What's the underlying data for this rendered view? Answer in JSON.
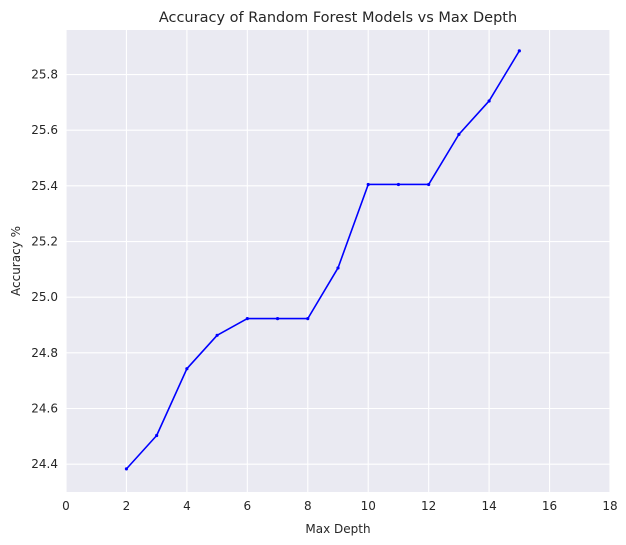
{
  "chart_data": {
    "type": "line",
    "title": "Accuracy of Random Forest Models vs Max Depth",
    "xlabel": "Max Depth",
    "ylabel": "Accuracy %",
    "xlim": [
      0,
      18
    ],
    "ylim": [
      24.3,
      25.96
    ],
    "xticks": [
      0,
      2,
      4,
      6,
      8,
      10,
      12,
      14,
      16,
      18
    ],
    "yticks": [
      24.4,
      24.6,
      24.8,
      25.0,
      25.2,
      25.4,
      25.6,
      25.8
    ],
    "xtick_labels": [
      "0",
      "2",
      "4",
      "6",
      "8",
      "10",
      "12",
      "14",
      "16",
      "18"
    ],
    "ytick_labels": [
      "24.4",
      "24.6",
      "24.8",
      "25.0",
      "25.2",
      "25.4",
      "25.6",
      "25.8"
    ],
    "grid": true,
    "series": [
      {
        "name": "Accuracy",
        "color": "#0000ff",
        "x": [
          2,
          3,
          4,
          5,
          6,
          7,
          8,
          9,
          10,
          11,
          12,
          13,
          14,
          15
        ],
        "values": [
          24.383,
          24.503,
          24.743,
          24.863,
          24.923,
          24.923,
          24.923,
          25.105,
          25.405,
          25.405,
          25.405,
          25.585,
          25.705,
          25.885
        ]
      }
    ]
  }
}
